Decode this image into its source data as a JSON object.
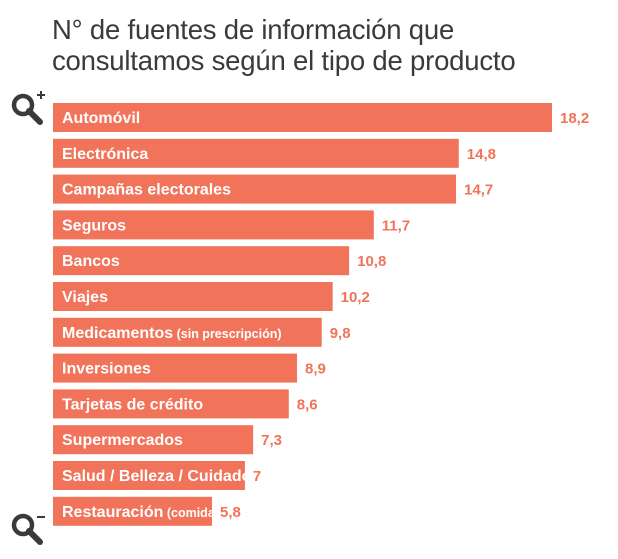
{
  "chart_data": {
    "type": "bar",
    "orientation": "horizontal",
    "title": "N° de fuentes de información que consultamos según el tipo de producto",
    "categories": [
      {
        "label": "Automóvil",
        "note": ""
      },
      {
        "label": "Electrónica",
        "note": ""
      },
      {
        "label": "Campañas electorales",
        "note": ""
      },
      {
        "label": "Seguros",
        "note": ""
      },
      {
        "label": "Bancos",
        "note": ""
      },
      {
        "label": "Viajes",
        "note": ""
      },
      {
        "label": "Medicamentos",
        "note": "(sin prescripción)"
      },
      {
        "label": "Inversiones",
        "note": ""
      },
      {
        "label": "Tarjetas de crédito",
        "note": ""
      },
      {
        "label": "Supermercados",
        "note": ""
      },
      {
        "label": "Salud / Belleza / Cuidado personal",
        "note": ""
      },
      {
        "label": "Restauración",
        "note": "(comida rápida)"
      }
    ],
    "values": [
      18.2,
      14.8,
      14.7,
      11.7,
      10.8,
      10.2,
      9.8,
      8.9,
      8.6,
      7.3,
      7,
      5.8
    ],
    "value_labels": [
      "18,2",
      "14,8",
      "14,7",
      "11,7",
      "10,8",
      "10,2",
      "9,8",
      "8,9",
      "8,6",
      "7,3",
      "7",
      "5,8"
    ],
    "xlim": [
      0,
      18.2
    ],
    "grid": false,
    "legend": "none",
    "colors": {
      "bar": "#f0735a",
      "value_text": "#f0735a",
      "title": "#3a3a3a",
      "icon": "#3a3a3a"
    }
  },
  "icons": {
    "top": "zoom-in-icon",
    "bottom": "zoom-out-icon"
  }
}
